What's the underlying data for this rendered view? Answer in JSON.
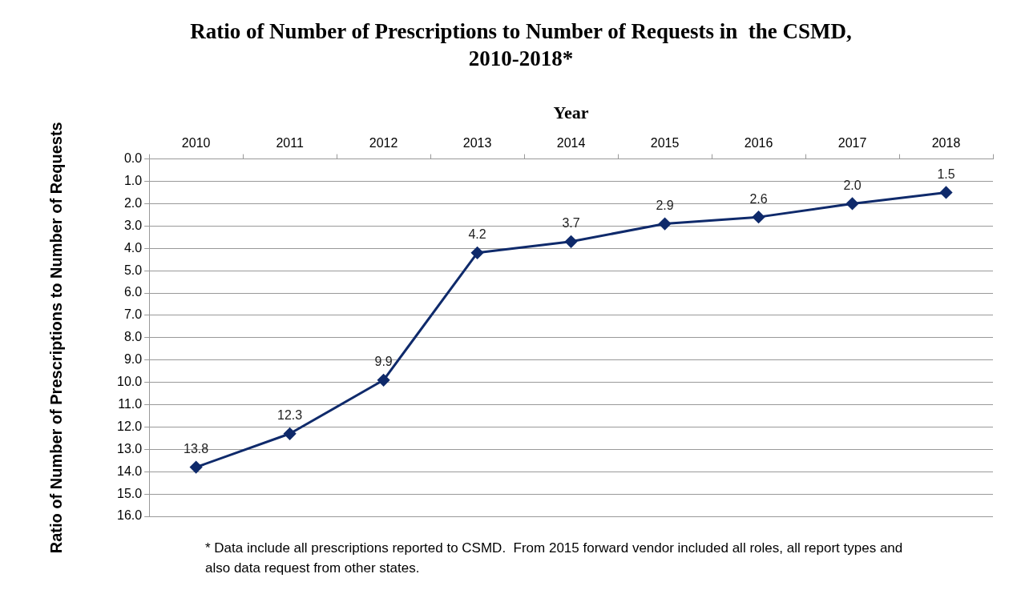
{
  "chart_data": {
    "type": "line",
    "title": "Ratio of Number of Prescriptions to Number of Requests in  the CSMD, 2010-2018*",
    "xlabel": "Year",
    "ylabel": "Ratio of Number of Prescriptions to Number of Requests",
    "categories": [
      "2010",
      "2011",
      "2012",
      "2013",
      "2014",
      "2015",
      "2016",
      "2017",
      "2018"
    ],
    "series": [
      {
        "color": "#0f2a6b",
        "values": [
          13.8,
          12.3,
          9.9,
          4.2,
          3.7,
          2.9,
          2.6,
          2.0,
          1.5
        ]
      }
    ],
    "ylim": [
      16,
      0
    ],
    "yticks": [
      {
        "value": 0,
        "label": "0.0"
      },
      {
        "value": 1,
        "label": "1.0"
      },
      {
        "value": 2,
        "label": "2.0"
      },
      {
        "value": 3,
        "label": "3.0"
      },
      {
        "value": 4,
        "label": "4.0"
      },
      {
        "value": 5,
        "label": "5.0"
      },
      {
        "value": 6,
        "label": "6.0"
      },
      {
        "value": 7,
        "label": "7.0"
      },
      {
        "value": 8,
        "label": "8.0"
      },
      {
        "value": 9,
        "label": "9.0"
      },
      {
        "value": 10,
        "label": "10.0"
      },
      {
        "value": 11,
        "label": "11.0"
      },
      {
        "value": 12,
        "label": "12.0"
      },
      {
        "value": 13,
        "label": "13.0"
      },
      {
        "value": 14,
        "label": "14.0"
      },
      {
        "value": 15,
        "label": "15.0"
      },
      {
        "value": 16,
        "label": "16.0"
      }
    ],
    "grid": "y",
    "marker": "diamond",
    "line_style": "solid",
    "legend": false,
    "value_labels": [
      "13.8",
      "12.3",
      "9.9",
      "4.2",
      "3.7",
      "2.9",
      "2.6",
      "2.0",
      "1.5"
    ],
    "annotations": [
      "* Data include all prescriptions reported to CSMD.  From 2015 forward vendor included all roles, all report types and also data request from other states."
    ]
  }
}
